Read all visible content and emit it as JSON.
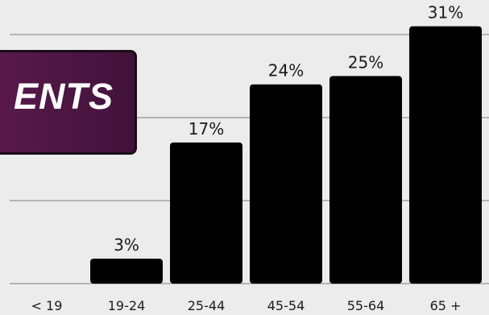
{
  "banner": {
    "text": "ENTS"
  },
  "chart_data": {
    "type": "bar",
    "categories": [
      "< 19",
      "19-24",
      "25-44",
      "45-54",
      "55-64",
      "65 +"
    ],
    "values": [
      0,
      3,
      17,
      24,
      25,
      31
    ],
    "value_labels": [
      "",
      "3%",
      "17%",
      "24%",
      "25%",
      "31%"
    ],
    "unit": "%",
    "ylim": [
      0,
      33
    ],
    "gridlines": [
      10,
      20,
      30
    ],
    "grid": true,
    "bar_color": "#000000",
    "grid_color": "#b3b3b3",
    "title": "",
    "xlabel": "",
    "ylabel": ""
  }
}
